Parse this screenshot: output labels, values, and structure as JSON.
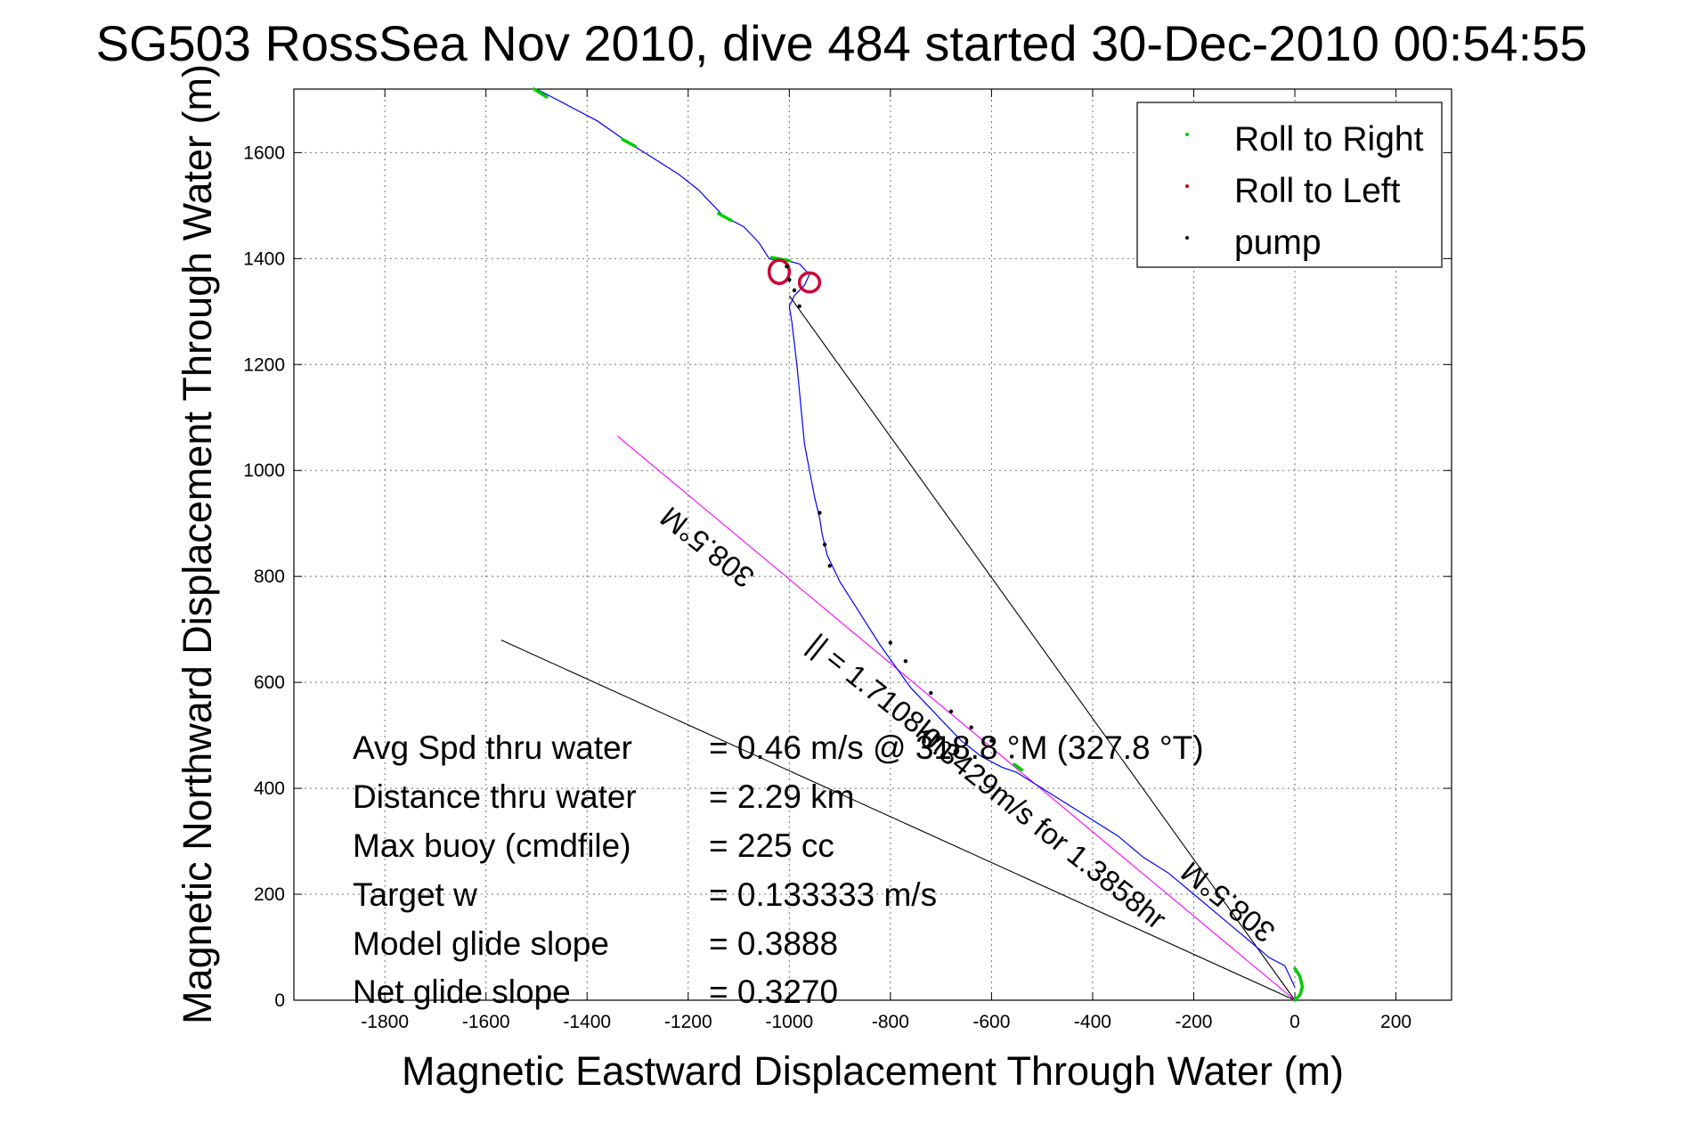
{
  "chart_data": {
    "type": "line",
    "title": "SG503 RossSea Nov 2010, dive 484 started 30-Dec-2010 00:54:55",
    "xlabel": "Magnetic Eastward Displacement Through Water (m)",
    "ylabel": "Magnetic Northward Displacement Through Water (m)",
    "xlim": [
      -1980,
      310
    ],
    "ylim": [
      0,
      1720
    ],
    "xticks": [
      -1800,
      -1600,
      -1400,
      -1200,
      -1000,
      -800,
      -600,
      -400,
      -200,
      0,
      200
    ],
    "yticks": [
      0,
      200,
      400,
      600,
      800,
      1000,
      1200,
      1400,
      1600
    ],
    "grid": true,
    "legend": {
      "placement": "top-right",
      "entries": [
        {
          "name": "Roll to Right",
          "color": "#00cc00"
        },
        {
          "name": "Roll to Left",
          "color": "#cc0000"
        },
        {
          "name": "pump",
          "color": "#000000"
        }
      ]
    },
    "series": [
      {
        "kind": "track",
        "color": "#0000ff",
        "x": [
          -1500,
          -1440,
          -1380,
          -1320,
          -1270,
          -1220,
          -1180,
          -1130,
          -1090,
          -1060,
          -1040,
          -1020,
          -1000,
          -980,
          -960,
          -970,
          -990,
          -1000,
          -995,
          -990,
          -985,
          -980,
          -975,
          -970,
          -960,
          -950,
          -940,
          -935,
          -930,
          -925,
          -915,
          -900,
          -860,
          -820,
          -790,
          -760,
          -730,
          -700,
          -660,
          -620,
          -580,
          -550,
          -500,
          -450,
          -400,
          -350,
          -300,
          -250,
          -200,
          -150,
          -100,
          -50,
          -20,
          0
        ],
        "y": [
          1720,
          1690,
          1660,
          1620,
          1590,
          1560,
          1530,
          1480,
          1460,
          1430,
          1400,
          1395,
          1395,
          1390,
          1370,
          1350,
          1330,
          1310,
          1280,
          1240,
          1200,
          1150,
          1100,
          1050,
          1000,
          950,
          910,
          880,
          860,
          840,
          820,
          790,
          730,
          670,
          630,
          590,
          560,
          530,
          490,
          460,
          440,
          430,
          400,
          370,
          340,
          310,
          270,
          240,
          200,
          160,
          120,
          80,
          65,
          25
        ]
      }
    ],
    "roll_right_segments": [
      {
        "x": [
          -1505,
          -1480
        ],
        "y": [
          1720,
          1705
        ]
      },
      {
        "x": [
          -1330,
          -1305
        ],
        "y": [
          1625,
          1612
        ]
      },
      {
        "x": [
          -1140,
          -1115
        ],
        "y": [
          1485,
          1472
        ]
      },
      {
        "x": [
          -1035,
          -1000
        ],
        "y": [
          1402,
          1396
        ]
      },
      {
        "x": [
          -555,
          -540
        ],
        "y": [
          445,
          435
        ]
      },
      {
        "x": [
          0,
          10,
          15,
          10,
          0
        ],
        "y": [
          60,
          45,
          25,
          10,
          0
        ]
      }
    ],
    "roll_left_loops": [
      {
        "cx": -1020,
        "cy": 1375,
        "rx": 20,
        "ry": 22
      },
      {
        "cx": -960,
        "cy": 1355,
        "rx": 20,
        "ry": 18
      }
    ],
    "pump_points": {
      "x": [
        -1005,
        -1000,
        -990,
        -980,
        -940,
        -930,
        -920,
        -800,
        -770,
        -720,
        -680,
        -640,
        -600,
        -560
      ],
      "y": [
        1385,
        1360,
        1340,
        1310,
        920,
        860,
        820,
        675,
        640,
        580,
        545,
        515,
        490,
        460
      ]
    },
    "reference_lines": [
      {
        "name": "thin-black-1",
        "color": "#000000",
        "x": [
          -1570,
          0
        ],
        "y": [
          680,
          0
        ]
      },
      {
        "name": "thin-black-2",
        "color": "#000000",
        "x": [
          -1000,
          0
        ],
        "y": [
          1330,
          0
        ]
      },
      {
        "name": "magenta-heading",
        "color": "#ff00ff",
        "x": [
          -1340,
          0
        ],
        "y": [
          1065,
          0
        ]
      }
    ],
    "annotations": [
      {
        "text": "308.5°M",
        "x": -1150,
        "y": 870,
        "angle": 218.5
      },
      {
        "text": "|| = 1.7108km",
        "x": -830,
        "y": 560,
        "angle": 38.5
      },
      {
        "text": "0.3429m/s for 1.3858hr",
        "x": -510,
        "y": 310,
        "angle": 38.5
      },
      {
        "text": "308.5°M",
        "x": -120,
        "y": 200,
        "angle": 218.5
      }
    ],
    "stats": [
      {
        "label": "Avg Spd thru water",
        "value": "=  0.46 m/s @ 318.8 °M (327.8 °T)"
      },
      {
        "label": "Distance thru water",
        "value": "=  2.29 km"
      },
      {
        "label": "Max buoy (cmdfile)",
        "value": "= 225 cc"
      },
      {
        "label": "Target w",
        "value": "= 0.133333 m/s"
      },
      {
        "label": "Model glide slope",
        "value": "= 0.3888"
      },
      {
        "label": "Net glide slope",
        "value": "= 0.3270"
      }
    ]
  }
}
